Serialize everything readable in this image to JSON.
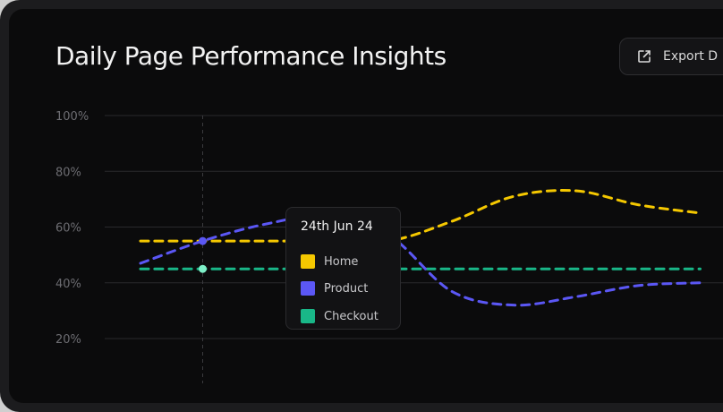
{
  "header": {
    "title": "Daily Page Performance Insights",
    "export_label": "Export D"
  },
  "icons": {
    "export": "external-link-icon"
  },
  "tooltip": {
    "date": "24th Jun 24",
    "items": [
      {
        "label": "Home",
        "color": "#f5c800"
      },
      {
        "label": "Product",
        "color": "#5b57f5"
      },
      {
        "label": "Checkout",
        "color": "#19b788"
      }
    ]
  },
  "chart_data": {
    "type": "line",
    "title": "Daily Page Performance Insights",
    "ylim": [
      0,
      100
    ],
    "y_ticks": [
      "100%",
      "80%",
      "60%",
      "40%",
      "20%"
    ],
    "grid": true,
    "line_style": "dashed",
    "highlight_index": 1,
    "x": [
      0,
      1,
      2,
      3,
      4,
      5,
      6,
      7,
      8,
      9
    ],
    "series": [
      {
        "name": "Home",
        "color": "#f5c800",
        "values": [
          55,
          55,
          55,
          55,
          55,
          62,
          71,
          73,
          68,
          65
        ]
      },
      {
        "name": "Product",
        "color": "#5b57f5",
        "values": [
          47,
          55,
          61,
          64,
          57,
          37,
          32,
          35,
          39,
          40
        ]
      },
      {
        "name": "Checkout",
        "color": "#19b788",
        "values": [
          45,
          45,
          45,
          45,
          45,
          45,
          45,
          45,
          45,
          45
        ]
      }
    ]
  }
}
